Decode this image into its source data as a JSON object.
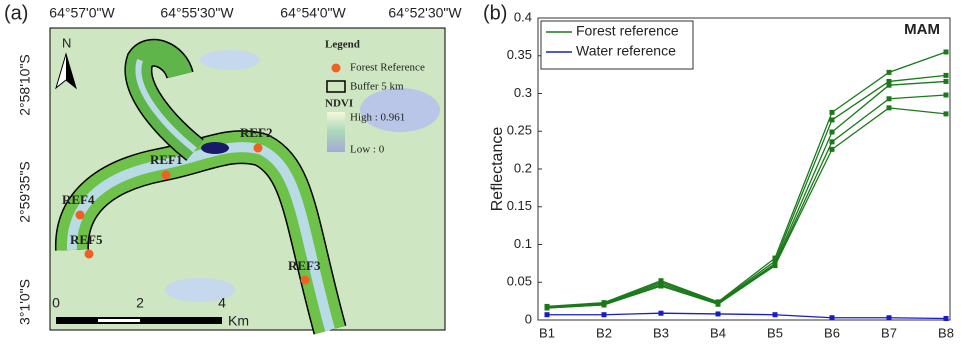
{
  "map": {
    "panel_label": "(a)",
    "lon_labels": [
      "64°57'0\"W",
      "64°55'30\"W",
      "64°54'0\"W",
      "64°52'30\"W"
    ],
    "lat_labels": [
      "2°58'10\"S",
      "2°59'35\"S",
      "3°1'0\"S"
    ],
    "north": "N",
    "legend": {
      "title": "Legend",
      "forest": "Forest Reference",
      "buffer": "Buffer 5 km",
      "ndvi": "NDVI",
      "high": "High : 0.961",
      "low": "Low : 0"
    },
    "refs": [
      "REF1",
      "REF2",
      "REF3",
      "REF4",
      "REF5"
    ],
    "scale": [
      "0",
      "2",
      "4",
      "Km"
    ]
  },
  "chart_data": {
    "type": "line",
    "panel_label": "(b)",
    "annotation": "MAM",
    "ylabel": "Reflectance",
    "categories": [
      "B1",
      "B2",
      "B3",
      "B4",
      "B5",
      "B6",
      "B7",
      "B8"
    ],
    "ylim": [
      0,
      0.4
    ],
    "yticks": [
      0,
      0.05,
      0.1,
      0.15,
      0.2,
      0.25,
      0.3,
      0.35,
      0.4
    ],
    "series": [
      {
        "name": "Forest reference",
        "color": "#1a7a1a",
        "values": [
          0.018,
          0.023,
          0.052,
          0.024,
          0.082,
          0.275,
          0.328,
          0.355
        ]
      },
      {
        "color": "#1a7a1a",
        "values": [
          0.017,
          0.022,
          0.05,
          0.023,
          0.078,
          0.265,
          0.316,
          0.324
        ]
      },
      {
        "color": "#1a7a1a",
        "values": [
          0.017,
          0.021,
          0.048,
          0.022,
          0.075,
          0.249,
          0.311,
          0.316
        ]
      },
      {
        "color": "#1a7a1a",
        "values": [
          0.016,
          0.02,
          0.046,
          0.021,
          0.073,
          0.236,
          0.293,
          0.298
        ]
      },
      {
        "color": "#1a7a1a",
        "values": [
          0.016,
          0.02,
          0.045,
          0.021,
          0.072,
          0.226,
          0.281,
          0.273
        ]
      },
      {
        "name": "Water reference",
        "color": "#1a1acc",
        "values": [
          0.007,
          0.007,
          0.009,
          0.008,
          0.007,
          0.003,
          0.003,
          0.002
        ]
      }
    ]
  }
}
